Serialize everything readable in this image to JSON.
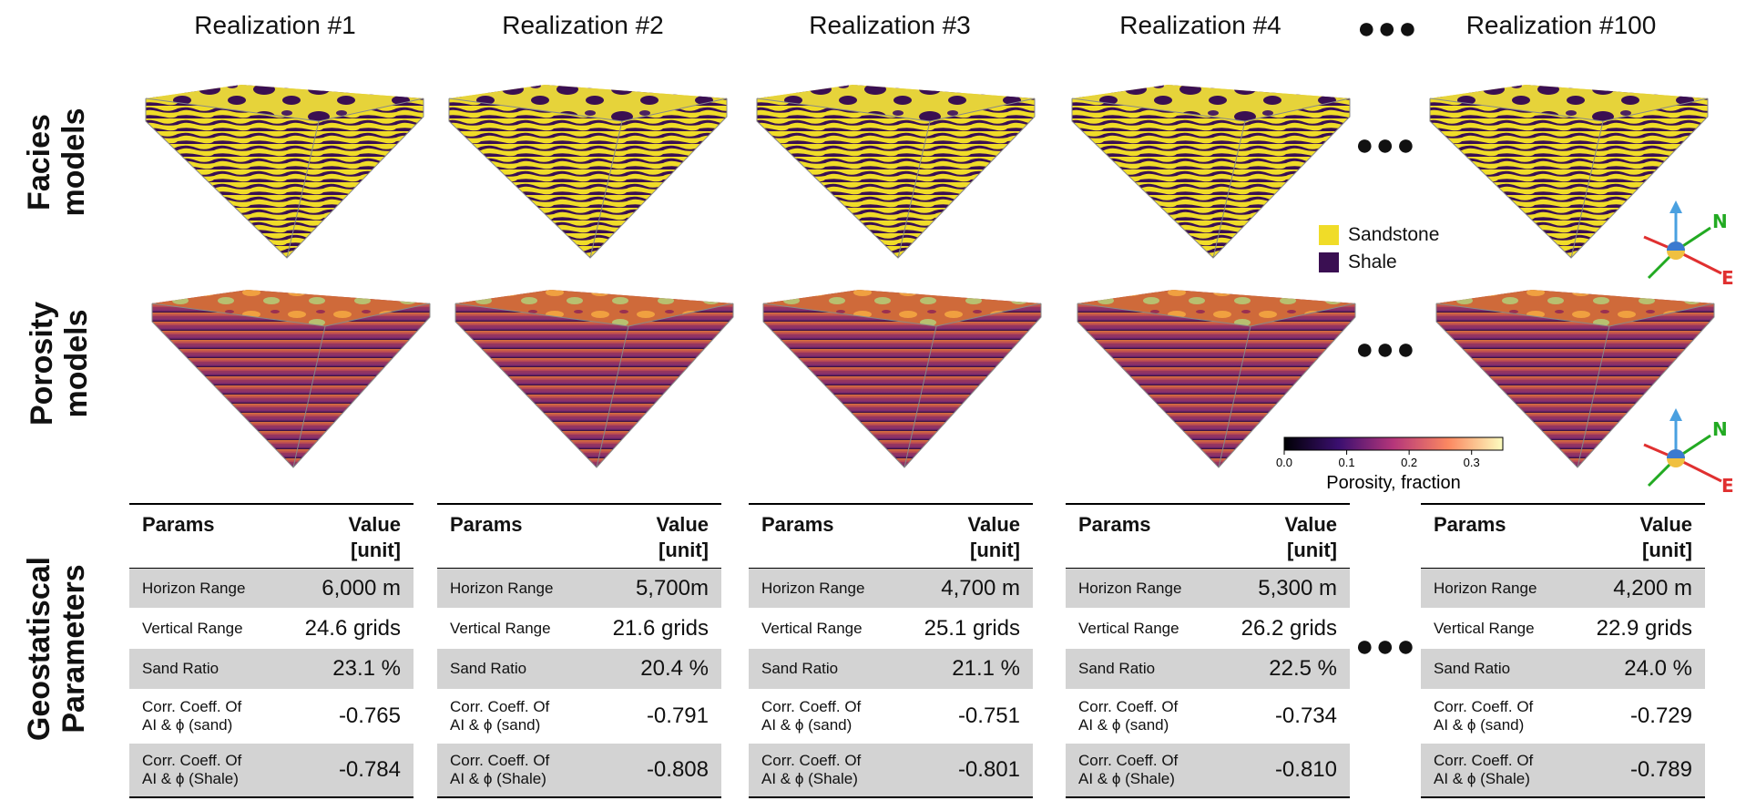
{
  "columns": [
    {
      "title": "Realization #1",
      "params": {
        "horizon_range": "6,000 m",
        "vertical_range": "24.6 grids",
        "sand_ratio": "23.1 %",
        "corr_sand": "-0.765",
        "corr_shale": "-0.784"
      }
    },
    {
      "title": "Realization #2",
      "params": {
        "horizon_range": "5,700m",
        "vertical_range": "21.6 grids",
        "sand_ratio": "20.4 %",
        "corr_sand": "-0.791",
        "corr_shale": "-0.808"
      }
    },
    {
      "title": "Realization #3",
      "params": {
        "horizon_range": "4,700 m",
        "vertical_range": "25.1 grids",
        "sand_ratio": "21.1 %",
        "corr_sand": "-0.751",
        "corr_shale": "-0.801"
      }
    },
    {
      "title": "Realization #4",
      "params": {
        "horizon_range": "5,300 m",
        "vertical_range": "26.2 grids",
        "sand_ratio": "22.5 %",
        "corr_sand": "-0.734",
        "corr_shale": "-0.810"
      }
    },
    {
      "title": "Realization #100",
      "params": {
        "horizon_range": "4,200 m",
        "vertical_range": "22.9 grids",
        "sand_ratio": "24.0 %",
        "corr_sand": "-0.729",
        "corr_shale": "-0.789"
      }
    }
  ],
  "row_labels": {
    "facies": "Facies\nmodels",
    "porosity": "Porosity\nmodels",
    "geostat": "Geostatiscal\nParameters"
  },
  "table_header": {
    "params": "Params",
    "value_line1": "Value",
    "value_line2": "[unit]"
  },
  "param_labels": {
    "horizon_range": "Horizon Range",
    "vertical_range": "Vertical Range",
    "sand_ratio": "Sand Ratio",
    "corr_sand_line1": "Corr. Coeff. Of",
    "corr_sand_line2": "AI & ϕ (sand)",
    "corr_shale_line1": "Corr. Coeff. Of",
    "corr_shale_line2": "AI & ϕ (Shale)"
  },
  "ellipsis": "●●●",
  "legend": {
    "sandstone": "Sandstone",
    "shale": "Shale",
    "sandstone_color": "#f0dc28",
    "shale_color": "#3a0f52"
  },
  "colorbar": {
    "label": "Porosity, fraction",
    "ticks": [
      "0.0",
      "0.1",
      "0.2",
      "0.3"
    ],
    "range": [
      0.0,
      0.35
    ]
  },
  "compass": {
    "north": "N",
    "east": "E"
  }
}
